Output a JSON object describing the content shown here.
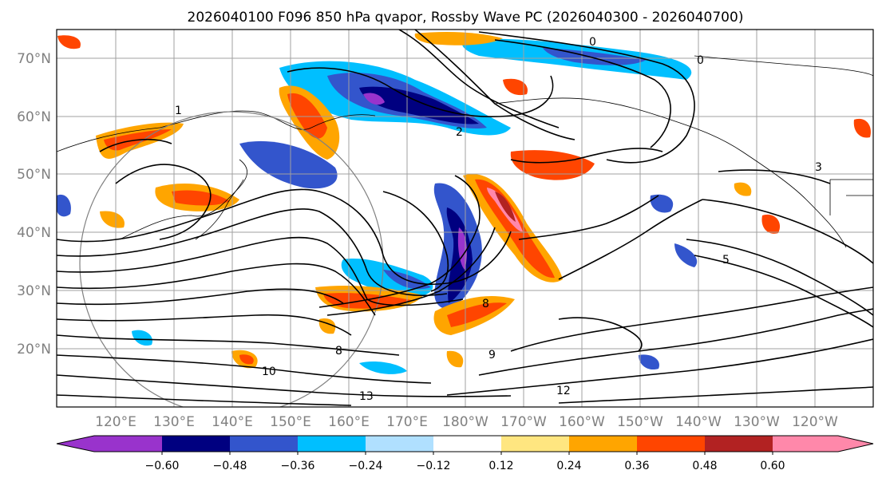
{
  "title": "2026040100 F096 850 hPa qvapor, Rossby Wave PC (2026040300 - 2026040700)",
  "map": {
    "lat_labels": [
      "70°N",
      "60°N",
      "50°N",
      "40°N",
      "30°N",
      "20°N"
    ],
    "lon_labels": [
      "120°E",
      "130°E",
      "140°E",
      "150°E",
      "160°E",
      "170°E",
      "180°W",
      "170°W",
      "160°W",
      "150°W",
      "140°W",
      "130°W",
      "120°W"
    ],
    "contour_labels": [
      "0",
      "0",
      "1",
      "2",
      "3",
      "5",
      "8",
      "8",
      "9",
      "10",
      "13",
      "12"
    ]
  },
  "colorbar": {
    "colors": [
      "#9933cc",
      "#000080",
      "#3355cc",
      "#00bfff",
      "#b0e0ff",
      "#ffffff",
      "#ffe680",
      "#ffa500",
      "#ff4500",
      "#b22222",
      "#ff88aa"
    ],
    "tick_labels": [
      "−0.60",
      "−0.48",
      "−0.36",
      "−0.24",
      "−0.12",
      "0.12",
      "0.24",
      "0.36",
      "0.48",
      "0.60"
    ]
  }
}
